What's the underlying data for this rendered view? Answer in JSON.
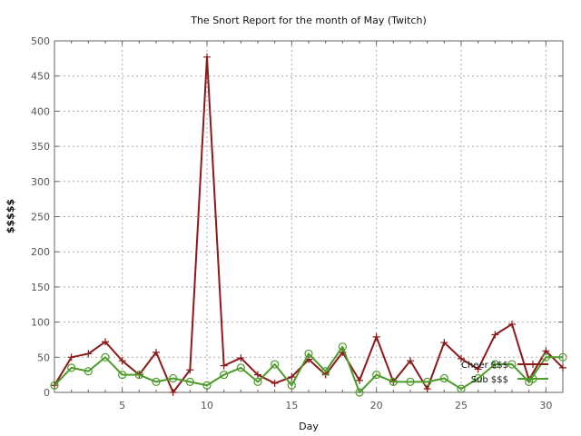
{
  "chart_data": {
    "type": "line",
    "title": "The Snort Report for the month of May (Twitch)",
    "xlabel": "Day",
    "ylabel": "$$$$$",
    "xlim": [
      1,
      31
    ],
    "ylim": [
      0,
      500
    ],
    "x_ticks": [
      5,
      10,
      15,
      20,
      25,
      30
    ],
    "y_ticks": [
      0,
      50,
      100,
      150,
      200,
      250,
      300,
      350,
      400,
      450,
      500
    ],
    "grid": true,
    "legend_position": "right",
    "x": [
      1,
      2,
      3,
      4,
      5,
      6,
      7,
      8,
      9,
      10,
      11,
      12,
      13,
      14,
      15,
      16,
      17,
      18,
      19,
      20,
      21,
      22,
      23,
      24,
      25,
      26,
      27,
      28,
      29,
      30,
      31
    ],
    "series": [
      {
        "name": "Cheer $$$",
        "color": "#8b1a1a",
        "marker": "plus",
        "values": [
          10,
          50,
          55,
          72,
          45,
          25,
          57,
          0,
          32,
          477,
          38,
          49,
          25,
          13,
          22,
          47,
          25,
          57,
          17,
          79,
          15,
          45,
          5,
          71,
          48,
          33,
          82,
          97,
          18,
          59,
          35
        ]
      },
      {
        "name": "Sub $$$",
        "color": "#4e9a2a",
        "marker": "circle",
        "values": [
          10,
          35,
          30,
          50,
          25,
          25,
          15,
          20,
          15,
          10,
          25,
          35,
          15,
          40,
          10,
          55,
          30,
          65,
          0,
          25,
          15,
          15,
          15,
          20,
          5,
          20,
          40,
          40,
          15,
          50,
          50
        ]
      }
    ]
  }
}
